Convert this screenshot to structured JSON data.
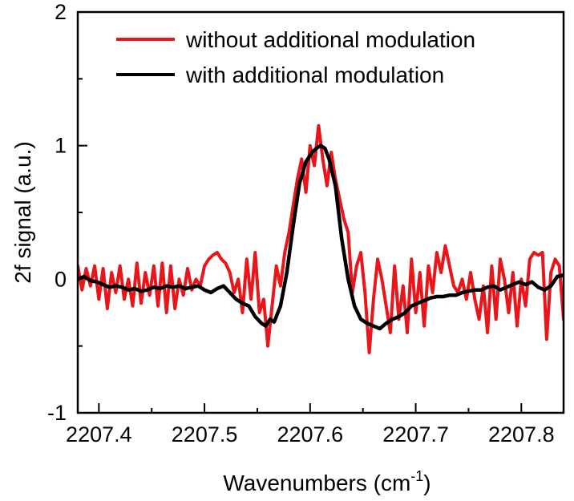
{
  "chart_data": {
    "type": "line",
    "title": "",
    "xlabel": "Wavenumbers (cm",
    "xlabel_superscript": "-1",
    "xlabel_suffix": ")",
    "ylabel": "2f signal (a.u.)",
    "xlim": [
      2207.38,
      2207.84
    ],
    "ylim": [
      -1,
      2
    ],
    "xticks": [
      2207.4,
      2207.5,
      2207.6,
      2207.7,
      2207.8
    ],
    "xtick_labels": [
      "2207.4",
      "2207.5",
      "2207.6",
      "2207.7",
      "2207.8"
    ],
    "yticks": [
      -1,
      0,
      1,
      2
    ],
    "ytick_labels": [
      "-1",
      "0",
      "1",
      "2"
    ],
    "grid": false,
    "legend_position": "top-right",
    "series": [
      {
        "name": "without additional modulation",
        "color": "#e8161b",
        "x": [
          2207.38,
          2207.384,
          2207.388,
          2207.392,
          2207.396,
          2207.4,
          2207.404,
          2207.408,
          2207.412,
          2207.416,
          2207.42,
          2207.424,
          2207.428,
          2207.432,
          2207.436,
          2207.44,
          2207.444,
          2207.448,
          2207.452,
          2207.456,
          2207.46,
          2207.464,
          2207.468,
          2207.472,
          2207.476,
          2207.48,
          2207.484,
          2207.488,
          2207.492,
          2207.496,
          2207.5,
          2207.504,
          2207.508,
          2207.512,
          2207.516,
          2207.52,
          2207.524,
          2207.528,
          2207.532,
          2207.536,
          2207.54,
          2207.544,
          2207.548,
          2207.552,
          2207.556,
          2207.56,
          2207.564,
          2207.568,
          2207.572,
          2207.576,
          2207.58,
          2207.584,
          2207.588,
          2207.592,
          2207.596,
          2207.6,
          2207.604,
          2207.608,
          2207.612,
          2207.616,
          2207.62,
          2207.624,
          2207.628,
          2207.632,
          2207.636,
          2207.64,
          2207.644,
          2207.648,
          2207.652,
          2207.656,
          2207.66,
          2207.664,
          2207.668,
          2207.672,
          2207.676,
          2207.68,
          2207.684,
          2207.688,
          2207.692,
          2207.696,
          2207.7,
          2207.704,
          2207.708,
          2207.712,
          2207.716,
          2207.72,
          2207.724,
          2207.728,
          2207.732,
          2207.736,
          2207.74,
          2207.744,
          2207.748,
          2207.752,
          2207.756,
          2207.76,
          2207.764,
          2207.768,
          2207.772,
          2207.776,
          2207.78,
          2207.784,
          2207.788,
          2207.792,
          2207.796,
          2207.8,
          2207.804,
          2207.808,
          2207.812,
          2207.816,
          2207.82,
          2207.824,
          2207.828,
          2207.832,
          2207.836,
          2207.84
        ],
        "y": [
          0.1,
          -0.08,
          0.08,
          -0.05,
          0.1,
          -0.15,
          0.08,
          -0.22,
          0.05,
          -0.1,
          0.1,
          -0.15,
          0.0,
          -0.2,
          0.12,
          -0.18,
          0.05,
          -0.12,
          0.1,
          -0.2,
          0.12,
          -0.25,
          0.1,
          -0.22,
          0.0,
          -0.12,
          0.08,
          -0.08,
          0.0,
          -0.05,
          0.1,
          0.15,
          0.18,
          0.2,
          0.15,
          0.12,
          0.05,
          -0.1,
          0.0,
          -0.25,
          0.15,
          -0.15,
          0.2,
          -0.25,
          -0.15,
          -0.5,
          -0.2,
          0.1,
          -0.05,
          0.2,
          0.35,
          0.55,
          0.75,
          0.9,
          0.65,
          1.0,
          0.85,
          1.15,
          0.9,
          0.7,
          0.95,
          0.75,
          0.6,
          0.45,
          0.35,
          -0.1,
          0.1,
          0.2,
          -0.1,
          -0.55,
          -0.15,
          0.15,
          0.0,
          -0.2,
          -0.4,
          0.1,
          -0.3,
          -0.05,
          -0.4,
          0.15,
          -0.25,
          0.05,
          -0.35,
          0.1,
          -0.1,
          0.2,
          0.05,
          0.25,
          0.1,
          -0.05,
          -0.1,
          0.0,
          -0.15,
          0.05,
          -0.15,
          -0.3,
          -0.05,
          -0.4,
          0.1,
          -0.3,
          0.15,
          0.0,
          -0.25,
          0.05,
          -0.35,
          0.0,
          -0.2,
          0.15,
          0.2,
          0.18,
          0.2,
          -0.45,
          0.05,
          0.15,
          0.1,
          -0.3
        ]
      },
      {
        "name": "with additional modulation",
        "color": "#000000",
        "x": [
          2207.38,
          2207.386,
          2207.392,
          2207.398,
          2207.404,
          2207.41,
          2207.416,
          2207.422,
          2207.428,
          2207.434,
          2207.44,
          2207.446,
          2207.452,
          2207.458,
          2207.464,
          2207.47,
          2207.476,
          2207.482,
          2207.488,
          2207.494,
          2207.5,
          2207.506,
          2207.512,
          2207.518,
          2207.524,
          2207.53,
          2207.536,
          2207.542,
          2207.548,
          2207.554,
          2207.558,
          2207.562,
          2207.566,
          2207.572,
          2207.578,
          2207.584,
          2207.59,
          2207.596,
          2207.602,
          2207.606,
          2207.61,
          2207.614,
          2207.618,
          2207.624,
          2207.63,
          2207.636,
          2207.642,
          2207.648,
          2207.654,
          2207.66,
          2207.666,
          2207.672,
          2207.678,
          2207.684,
          2207.69,
          2207.696,
          2207.702,
          2207.708,
          2207.714,
          2207.72,
          2207.726,
          2207.732,
          2207.738,
          2207.744,
          2207.75,
          2207.756,
          2207.762,
          2207.768,
          2207.774,
          2207.78,
          2207.786,
          2207.792,
          2207.798,
          2207.804,
          2207.81,
          2207.816,
          2207.822,
          2207.828,
          2207.834,
          2207.84
        ],
        "y": [
          0.0,
          0.02,
          -0.01,
          -0.02,
          -0.04,
          -0.06,
          -0.05,
          -0.06,
          -0.08,
          -0.07,
          -0.09,
          -0.08,
          -0.06,
          -0.07,
          -0.05,
          -0.06,
          -0.05,
          -0.07,
          -0.06,
          -0.05,
          -0.08,
          -0.1,
          -0.07,
          -0.05,
          -0.1,
          -0.15,
          -0.18,
          -0.2,
          -0.28,
          -0.33,
          -0.35,
          -0.3,
          -0.32,
          -0.2,
          0.05,
          0.4,
          0.72,
          0.88,
          0.95,
          0.98,
          1.0,
          0.98,
          0.9,
          0.7,
          0.3,
          0.0,
          -0.2,
          -0.3,
          -0.33,
          -0.35,
          -0.37,
          -0.33,
          -0.3,
          -0.28,
          -0.25,
          -0.2,
          -0.18,
          -0.16,
          -0.14,
          -0.13,
          -0.13,
          -0.12,
          -0.12,
          -0.1,
          -0.09,
          -0.08,
          -0.08,
          -0.06,
          -0.05,
          -0.08,
          -0.06,
          -0.04,
          -0.02,
          -0.04,
          -0.02,
          -0.06,
          -0.08,
          -0.05,
          0.02,
          0.03
        ]
      }
    ]
  }
}
